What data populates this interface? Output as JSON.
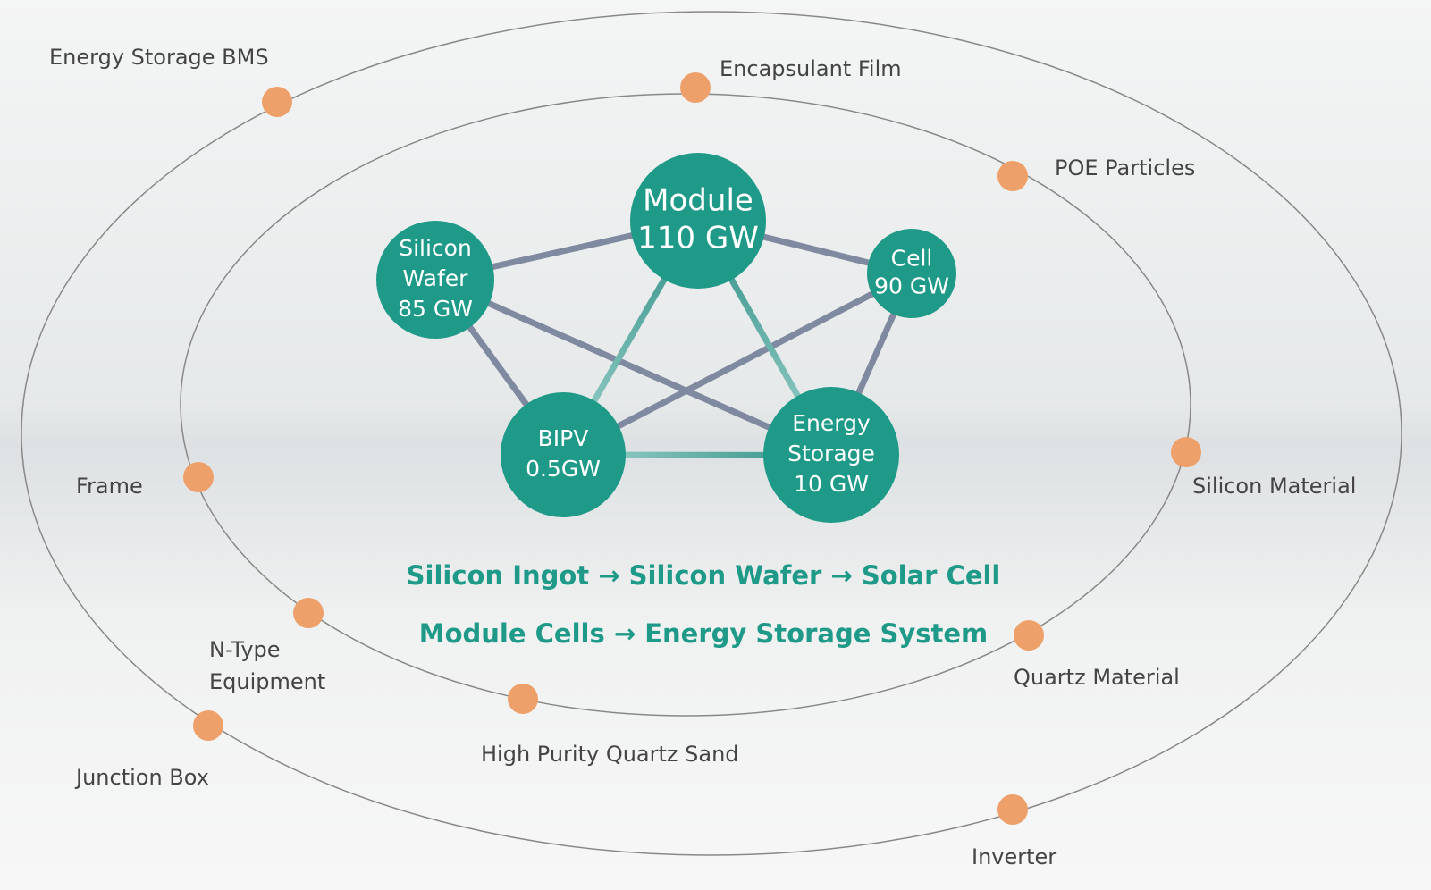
{
  "nodes": [
    {
      "lines": [
        "Module",
        "110 GW"
      ]
    },
    {
      "lines": [
        "Silicon",
        "Wafer",
        "85 GW"
      ]
    },
    {
      "lines": [
        "Cell",
        "90 GW"
      ]
    },
    {
      "lines": [
        "BIPV",
        "0.5GW"
      ]
    },
    {
      "lines": [
        "Energy",
        "Storage",
        "10 GW"
      ]
    }
  ],
  "satellites": [
    {
      "lines": [
        "Energy Storage BMS"
      ]
    },
    {
      "lines": [
        "Encapsulant Film"
      ]
    },
    {
      "lines": [
        "POE Particles"
      ]
    },
    {
      "lines": [
        "Silicon Material"
      ]
    },
    {
      "lines": [
        "Quartz Material"
      ]
    },
    {
      "lines": [
        "Inverter"
      ]
    },
    {
      "lines": [
        "High Purity Quartz Sand"
      ]
    },
    {
      "lines": [
        "Junction Box"
      ]
    },
    {
      "lines": [
        "N-Type",
        "Equipment"
      ]
    },
    {
      "lines": [
        "Frame"
      ]
    }
  ],
  "flow": [
    "Silicon Ingot → Silicon Wafer → Solar Cell",
    "Module Cells → Energy Storage System"
  ]
}
